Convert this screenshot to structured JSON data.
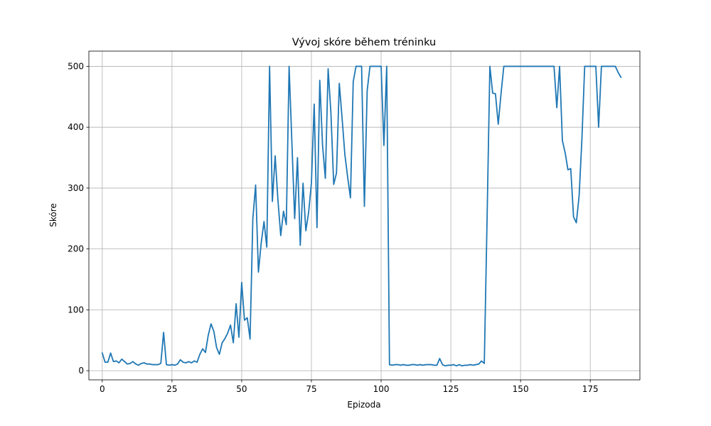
{
  "chart_data": {
    "type": "line",
    "title": "Vývoj skóre během tréninku",
    "xlabel": "Epizoda",
    "ylabel": "Skóre",
    "xlim": [
      -4.8,
      192.8
    ],
    "ylim": [
      -15,
      525
    ],
    "xticks": [
      0,
      25,
      50,
      75,
      100,
      125,
      150,
      175
    ],
    "yticks": [
      0,
      100,
      200,
      300,
      400,
      500
    ],
    "grid": true,
    "line_color": "#1f77b4",
    "series": [
      {
        "values": [
          29,
          14,
          14,
          29,
          15,
          16,
          13,
          19,
          15,
          11,
          12,
          15,
          11,
          9,
          12,
          13,
          11,
          11,
          10,
          10,
          10,
          12,
          63,
          10,
          9,
          10,
          9,
          11,
          18,
          14,
          13,
          15,
          13,
          16,
          14,
          27,
          36,
          30,
          58,
          77,
          65,
          38,
          27,
          46,
          53,
          62,
          75,
          46,
          110,
          55,
          145,
          83,
          87,
          52,
          250,
          305,
          162,
          210,
          245,
          203,
          500,
          278,
          353,
          280,
          222,
          262,
          240,
          500,
          375,
          250,
          350,
          206,
          308,
          230,
          260,
          308,
          438,
          235,
          477,
          370,
          316,
          496,
          423,
          306,
          325,
          472,
          415,
          355,
          318,
          284,
          475,
          500,
          500,
          500,
          270,
          460,
          500,
          500,
          500,
          500,
          500,
          370,
          500,
          10,
          9,
          10,
          10,
          9,
          10,
          9,
          9,
          10,
          10,
          9,
          10,
          9,
          10,
          10,
          10,
          9,
          9,
          20,
          10,
          8,
          9,
          9,
          10,
          8,
          10,
          8,
          9,
          9,
          10,
          9,
          10,
          11,
          16,
          12,
          250,
          500,
          456,
          455,
          405,
          455,
          500,
          500,
          500,
          500,
          500,
          500,
          500,
          500,
          500,
          500,
          500,
          500,
          500,
          500,
          500,
          500,
          500,
          500,
          500,
          432,
          500,
          378,
          358,
          330,
          332,
          253,
          243,
          287,
          380,
          500,
          500,
          500,
          500,
          500,
          400,
          500,
          500,
          500,
          500,
          500,
          500,
          490,
          482
        ]
      }
    ]
  }
}
